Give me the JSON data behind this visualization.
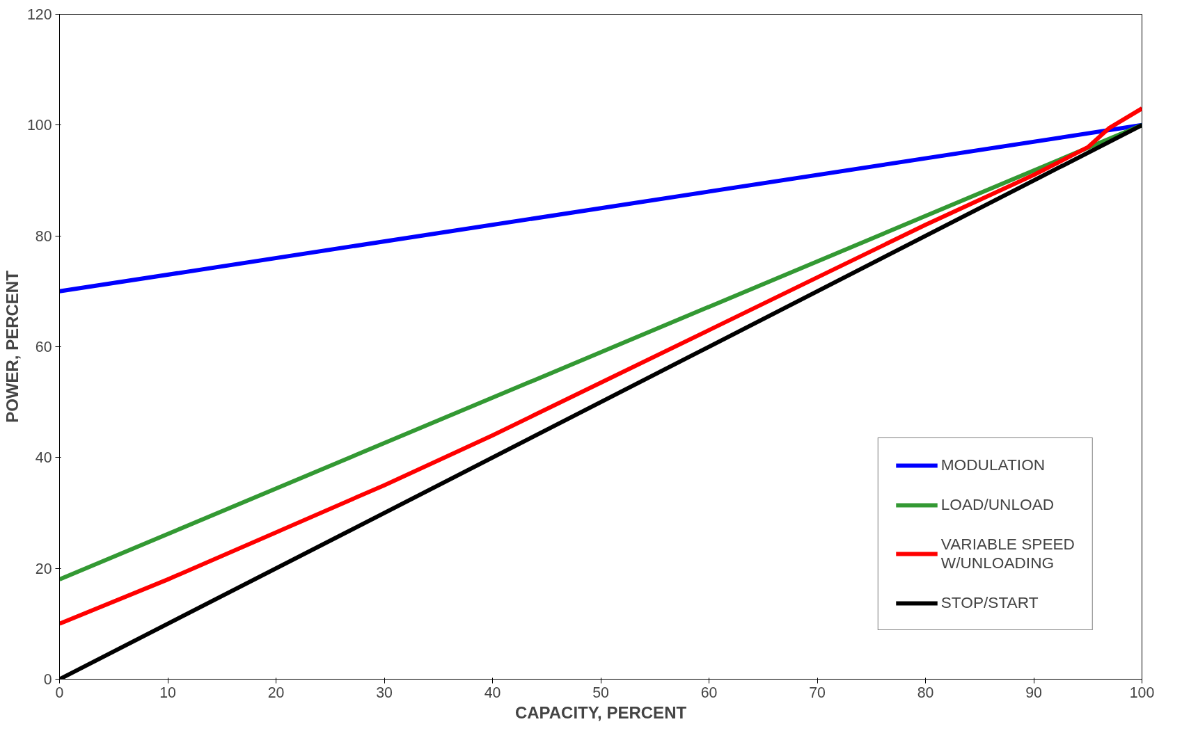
{
  "chart_data": {
    "type": "line",
    "xlabel": "CAPACITY, PERCENT",
    "ylabel": "POWER, PERCENT",
    "xlim": [
      0,
      100
    ],
    "ylim": [
      0,
      120
    ],
    "xticks": [
      0,
      10,
      20,
      30,
      40,
      50,
      60,
      70,
      80,
      90,
      100
    ],
    "yticks": [
      0,
      20,
      40,
      60,
      80,
      100,
      120
    ],
    "grid": false,
    "legend": "bottom right",
    "marker": "none",
    "line_style": "solid",
    "series": [
      {
        "name": "MODULATION",
        "color": "#0000ff",
        "x": [
          0,
          100
        ],
        "values": [
          70,
          100
        ]
      },
      {
        "name": "LOAD/UNLOAD",
        "color": "#339933",
        "x": [
          0,
          100
        ],
        "values": [
          18,
          100
        ]
      },
      {
        "name": "VARIABLE SPEED\nW/UNLOADING",
        "color": "#ff0000",
        "x": [
          0,
          10,
          20,
          30,
          40,
          50,
          60,
          70,
          80,
          90,
          95,
          97,
          100
        ],
        "values": [
          10,
          18,
          26.5,
          35,
          44,
          53.5,
          63,
          72.5,
          82,
          91,
          96,
          99.5,
          103
        ]
      },
      {
        "name": "STOP/START",
        "color": "#000000",
        "x": [
          0,
          100
        ],
        "values": [
          0,
          100
        ]
      }
    ]
  }
}
